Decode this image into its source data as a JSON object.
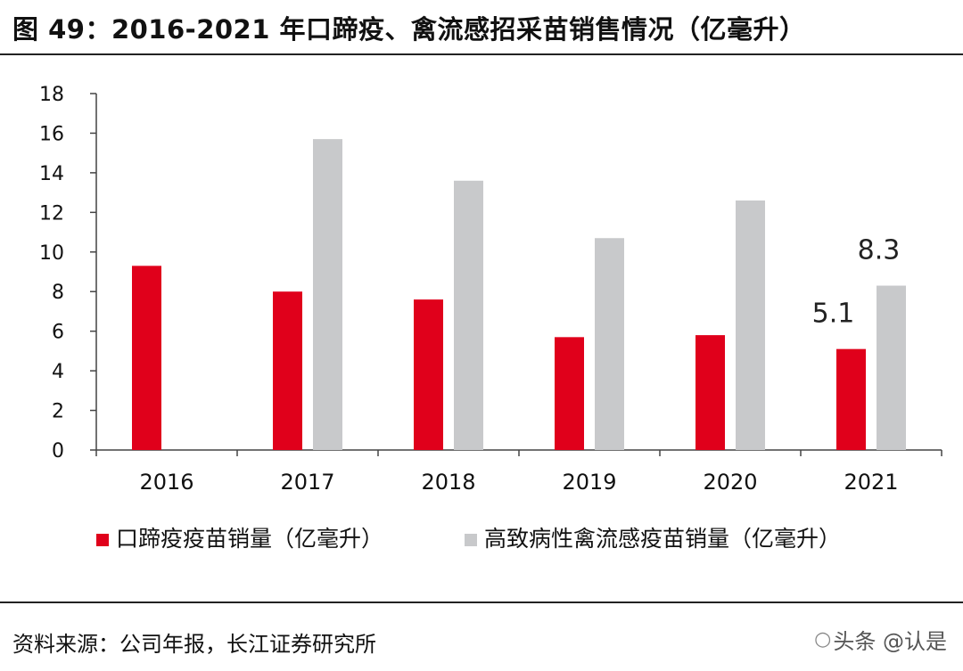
{
  "figure": {
    "title": "图 49：2016-2021 年口蹄疫、禽流感招采苗销售情况（亿毫升）",
    "source": "资料来源：公司年报，长江证券研究所",
    "watermark": "头条 @认是"
  },
  "chart_data": {
    "type": "bar",
    "title": "2016-2021 年口蹄疫、禽流感招采苗销售情况（亿毫升）",
    "xlabel": "",
    "ylabel": "",
    "categories": [
      "2016",
      "2017",
      "2018",
      "2019",
      "2020",
      "2021"
    ],
    "ylim": [
      0,
      18
    ],
    "yticks": [
      0,
      2,
      4,
      6,
      8,
      10,
      12,
      14,
      16,
      18
    ],
    "series": [
      {
        "name": "口蹄疫疫苗销量（亿毫升）",
        "color": "#e0001b",
        "values": [
          9.3,
          8.0,
          7.6,
          5.7,
          5.8,
          5.1
        ]
      },
      {
        "name": "高致病性禽流感疫苗销量（亿毫升）",
        "color": "#c8c9cb",
        "values": [
          null,
          15.7,
          13.6,
          10.7,
          12.6,
          8.3
        ]
      }
    ],
    "annotations": [
      {
        "series": 0,
        "category": "2021",
        "text": "5.1"
      },
      {
        "series": 1,
        "category": "2021",
        "text": "8.3"
      }
    ],
    "legend_position": "bottom",
    "grid": false
  }
}
